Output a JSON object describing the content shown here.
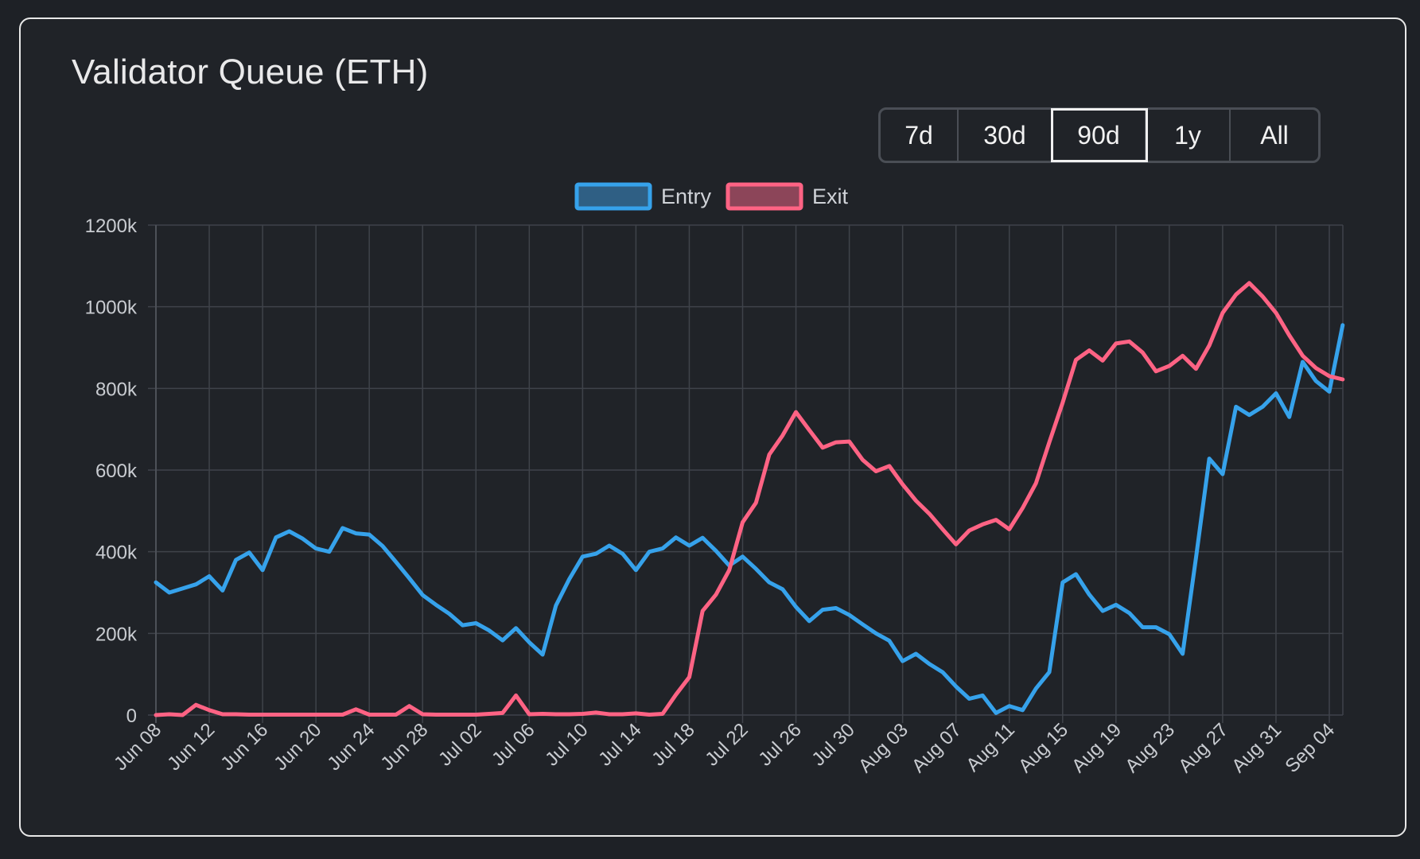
{
  "title": "Validator Queue (ETH)",
  "range_buttons": [
    {
      "label": "7d",
      "active": false
    },
    {
      "label": "30d",
      "active": false
    },
    {
      "label": "90d",
      "active": true
    },
    {
      "label": "1y",
      "active": false
    },
    {
      "label": "All",
      "active": false
    }
  ],
  "chart_data": {
    "type": "line",
    "title": "Validator Queue (ETH)",
    "x_tick_labels": [
      "Jun 08",
      "Jun 12",
      "Jun 16",
      "Jun 20",
      "Jun 24",
      "Jun 28",
      "Jul 02",
      "Jul 06",
      "Jul 10",
      "Jul 14",
      "Jul 18",
      "Jul 22",
      "Jul 26",
      "Jul 30",
      "Aug 03",
      "Aug 07",
      "Aug 11",
      "Aug 15",
      "Aug 19",
      "Aug 23",
      "Aug 27",
      "Aug 31",
      "Sep 04"
    ],
    "y_tick_labels": [
      "0",
      "200k",
      "400k",
      "600k",
      "800k",
      "1000k",
      "1200k"
    ],
    "ylim": [
      0,
      1200000
    ],
    "x_range_days": [
      0,
      89
    ],
    "x_start_label": "Jun 08",
    "grid": true,
    "legend_position": "top-center",
    "series": [
      {
        "name": "Entry",
        "color": "#36a2eb",
        "fill": "#2f5f84",
        "values": [
          325000,
          300000,
          310000,
          320000,
          340000,
          305000,
          380000,
          398000,
          355000,
          435000,
          450000,
          432000,
          408000,
          400000,
          458000,
          445000,
          442000,
          414000,
          375000,
          335000,
          294000,
          270000,
          248000,
          220000,
          225000,
          207000,
          183000,
          213000,
          178000,
          148000,
          268000,
          333000,
          388000,
          395000,
          415000,
          395000,
          355000,
          400000,
          408000,
          435000,
          415000,
          434000,
          402000,
          366000,
          388000,
          358000,
          325000,
          308000,
          265000,
          230000,
          258000,
          262000,
          245000,
          222000,
          200000,
          182000,
          132000,
          150000,
          125000,
          105000,
          70000,
          40000,
          48000,
          5000,
          22000,
          12000,
          65000,
          105000,
          325000,
          345000,
          295000,
          255000,
          270000,
          250000,
          215000,
          215000,
          198000,
          150000,
          385000,
          628000,
          590000,
          755000,
          735000,
          755000,
          788000,
          730000,
          865000,
          818000,
          792000,
          955000
        ]
      },
      {
        "name": "Exit",
        "color": "#ff6384",
        "fill": "#8c4559",
        "values": [
          0,
          2000,
          0,
          25000,
          12000,
          2000,
          2000,
          1000,
          1000,
          1000,
          1000,
          1000,
          1000,
          1000,
          1000,
          14000,
          1000,
          1000,
          1000,
          22000,
          2000,
          1000,
          1000,
          1000,
          1000,
          3000,
          5000,
          48000,
          2000,
          3000,
          2000,
          2000,
          3000,
          6000,
          2000,
          2000,
          4000,
          1000,
          3000,
          50000,
          93000,
          255000,
          295000,
          355000,
          472000,
          520000,
          638000,
          685000,
          742000,
          698000,
          655000,
          668000,
          670000,
          625000,
          597000,
          610000,
          565000,
          525000,
          493000,
          455000,
          418000,
          452000,
          467000,
          478000,
          455000,
          507000,
          568000,
          668000,
          765000,
          870000,
          893000,
          868000,
          910000,
          915000,
          888000,
          842000,
          855000,
          880000,
          848000,
          905000,
          985000,
          1030000,
          1058000,
          1025000,
          985000,
          930000,
          880000,
          850000,
          830000,
          822000
        ]
      }
    ]
  }
}
